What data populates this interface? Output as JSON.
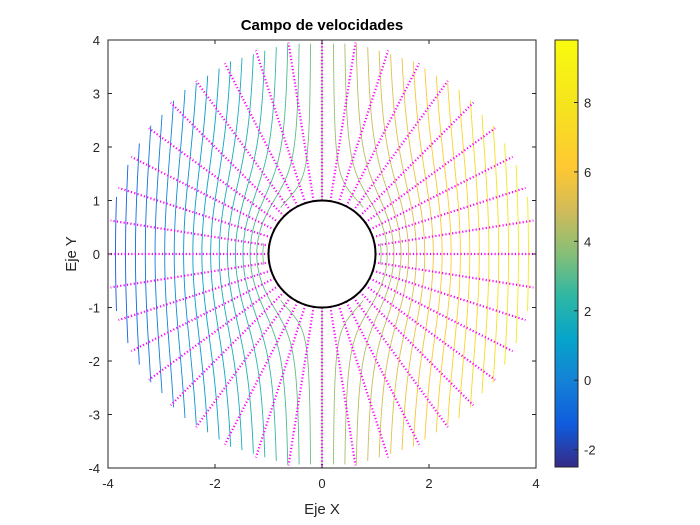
{
  "chart_data": {
    "type": "vector-field",
    "title": "Campo de velocidades",
    "xlabel": "Eje X",
    "ylabel": "Eje Y",
    "xlim": [
      -4,
      4
    ],
    "ylim": [
      -4,
      4
    ],
    "x_ticks": [
      -4,
      -2,
      0,
      2,
      4
    ],
    "y_ticks": [
      -4,
      -3,
      -2,
      -1,
      0,
      1,
      2,
      3,
      4
    ],
    "grid": false,
    "equal_aspect": true,
    "domain_radius": 4,
    "cylinder": {
      "center": [
        0,
        0
      ],
      "radius": 1
    },
    "colorbar": {
      "colormap": "parula",
      "range": [
        -2.5,
        9.8
      ],
      "ticks": [
        -2,
        0,
        2,
        4,
        6,
        8
      ],
      "location": "right"
    },
    "contour_lines": {
      "count": 41,
      "x_range": [
        -4,
        4
      ],
      "style": "solid",
      "color_by_value": true
    },
    "quiver": {
      "color": "#ff00ff",
      "rays": 40,
      "radial_range": [
        1,
        4
      ],
      "style": "dotted"
    }
  }
}
